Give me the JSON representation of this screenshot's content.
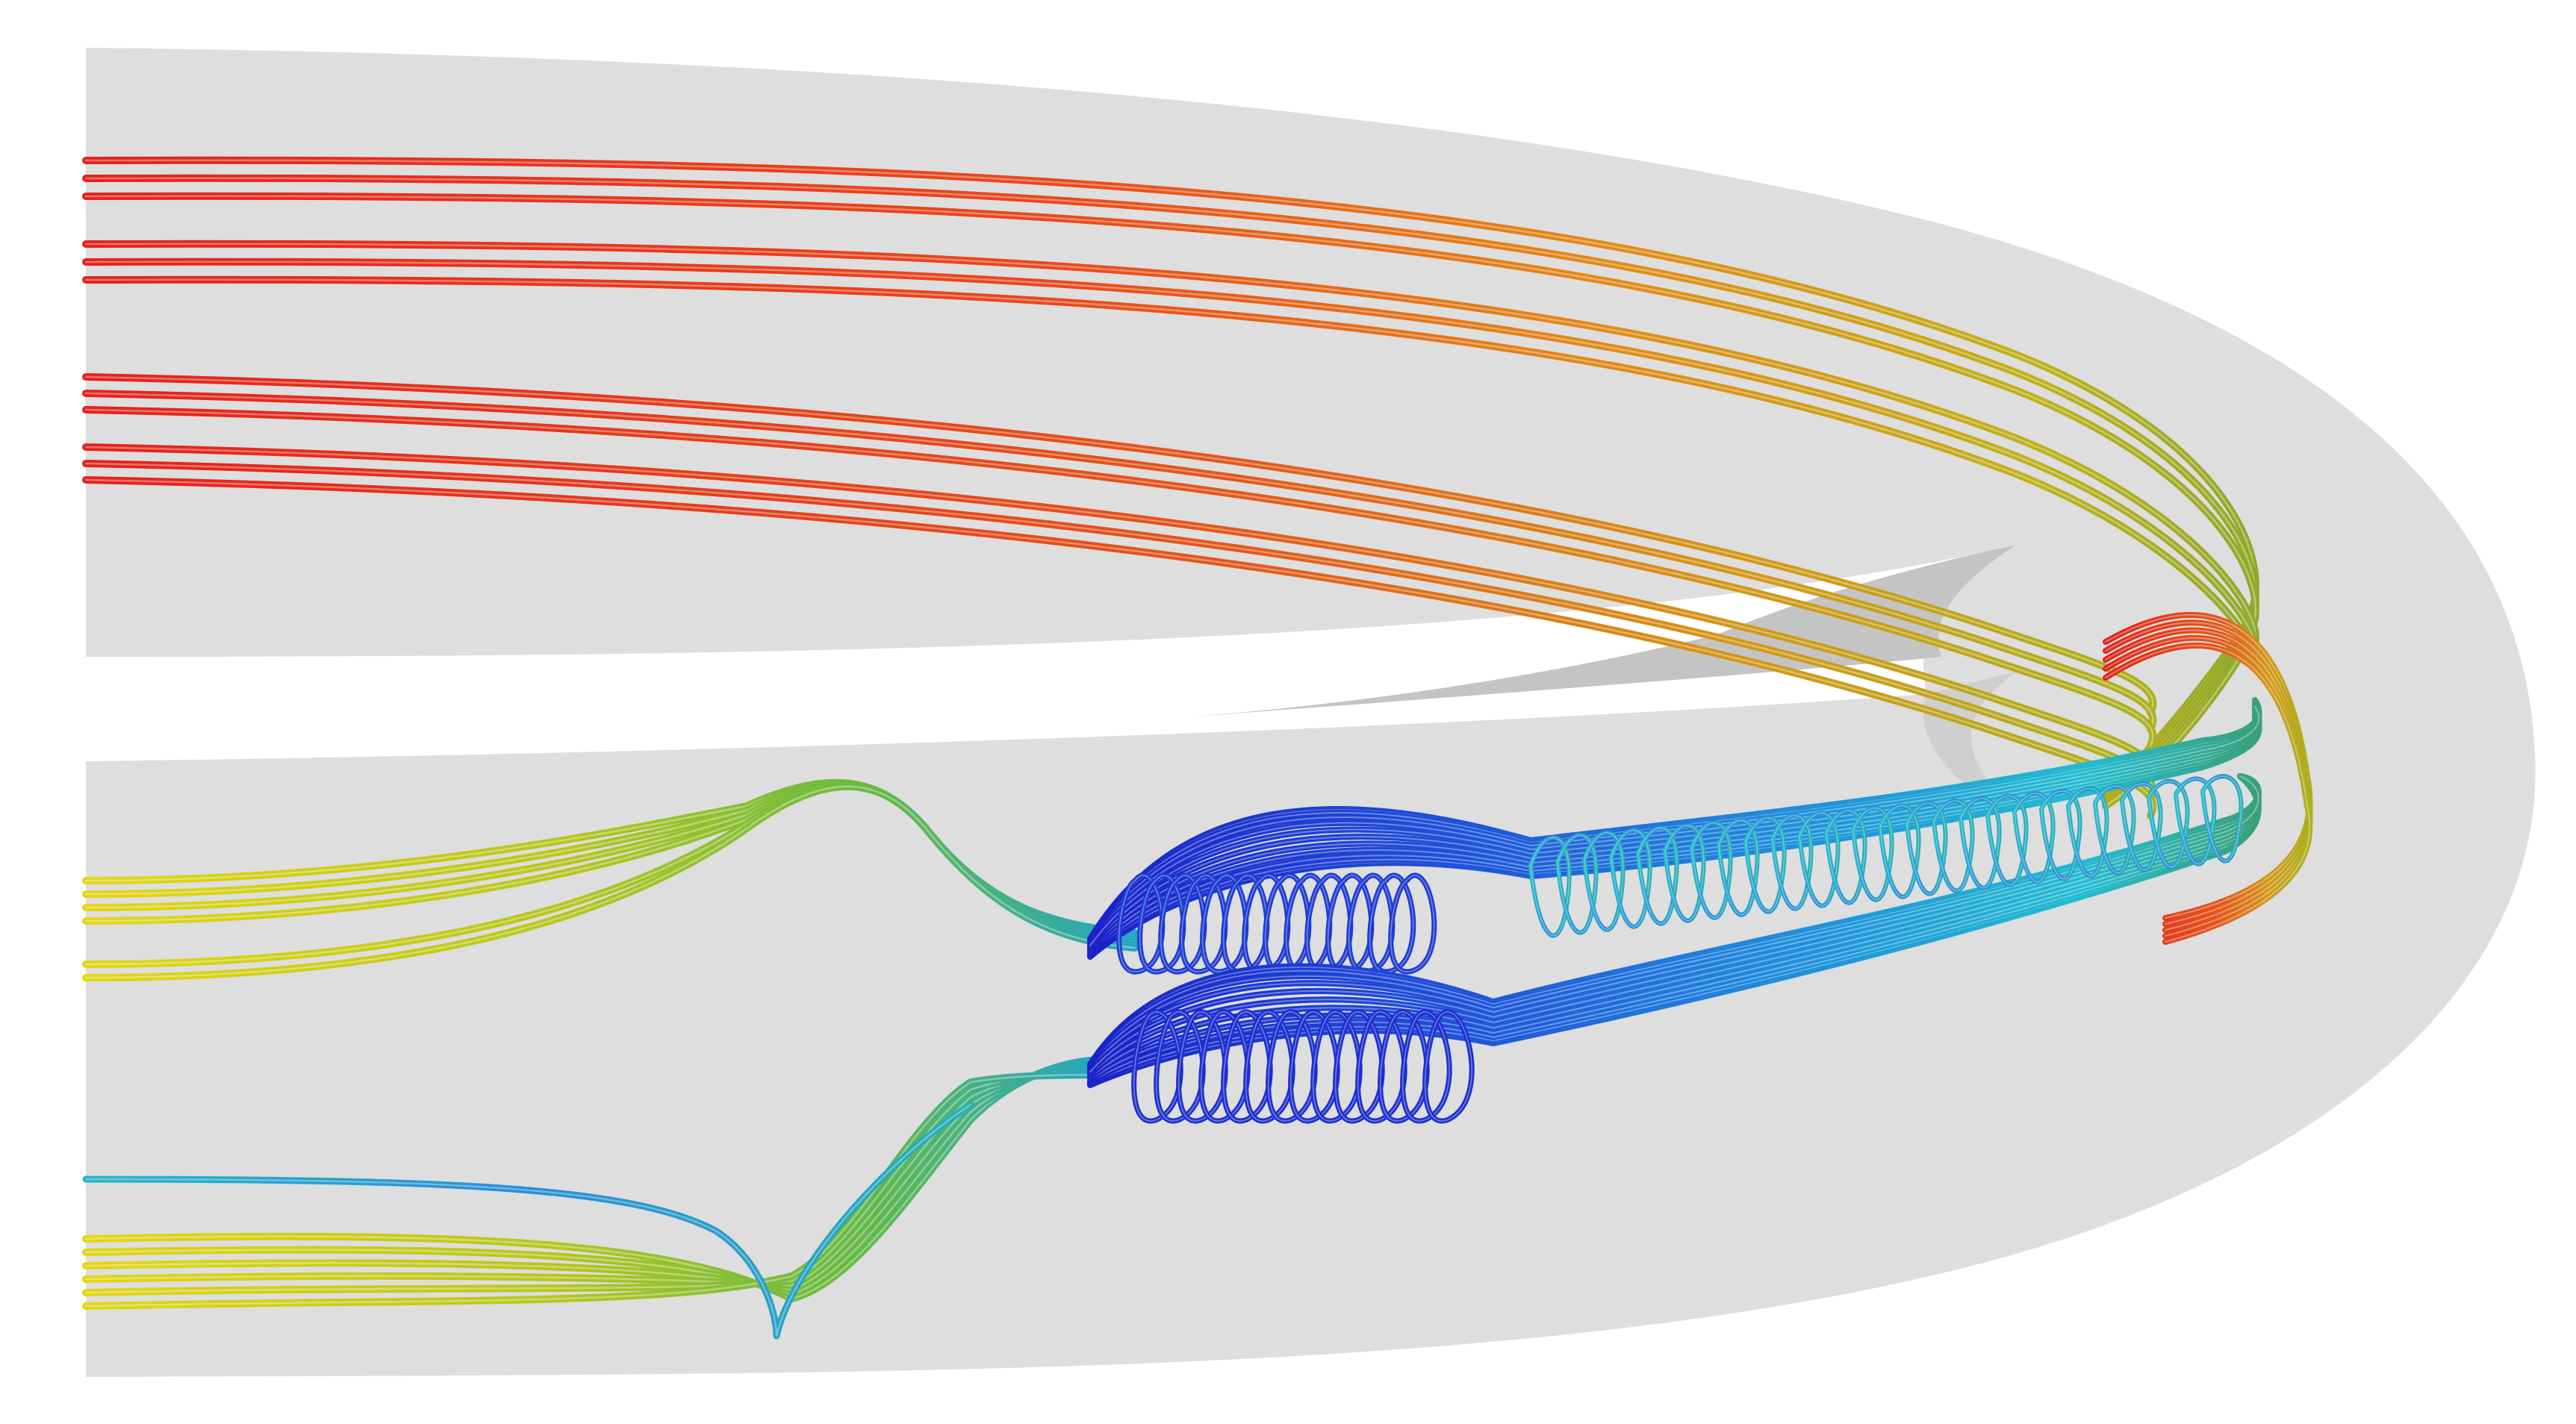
{
  "figure": {
    "kind": "3D streamline tube rendering of flow around a rounded body",
    "background_color": "#ffffff",
    "body_color": "#dedede",
    "body_shadow_color": "#c6c6c6",
    "colormap": [
      "#1c2fd0",
      "#1e78df",
      "#1fc1d6",
      "#7bc34a",
      "#d8d21a",
      "#f09a18",
      "#e8321c"
    ],
    "streamline_groups": [
      {
        "id": "upper-outer-red",
        "count": 6,
        "color_start": "#e8321c",
        "color_end": "#c9b21a"
      },
      {
        "id": "upper-inner-red",
        "count": 6,
        "color_start": "#e8321c",
        "color_end": "#b8b81f"
      },
      {
        "id": "middle-yellow",
        "count": 6,
        "color_start": "#d8d21a",
        "color_end": "#1fa8c8"
      },
      {
        "id": "lower-yellow",
        "count": 6,
        "color_start": "#d8d21a",
        "color_end": "#1fa8c8"
      },
      {
        "id": "vortex-upper",
        "count": 24,
        "color_start": "#1c2fd0",
        "color_end": "#27b6c9"
      },
      {
        "id": "vortex-lower",
        "count": 24,
        "color_start": "#1c2fd0",
        "color_end": "#27b6c9"
      }
    ]
  }
}
